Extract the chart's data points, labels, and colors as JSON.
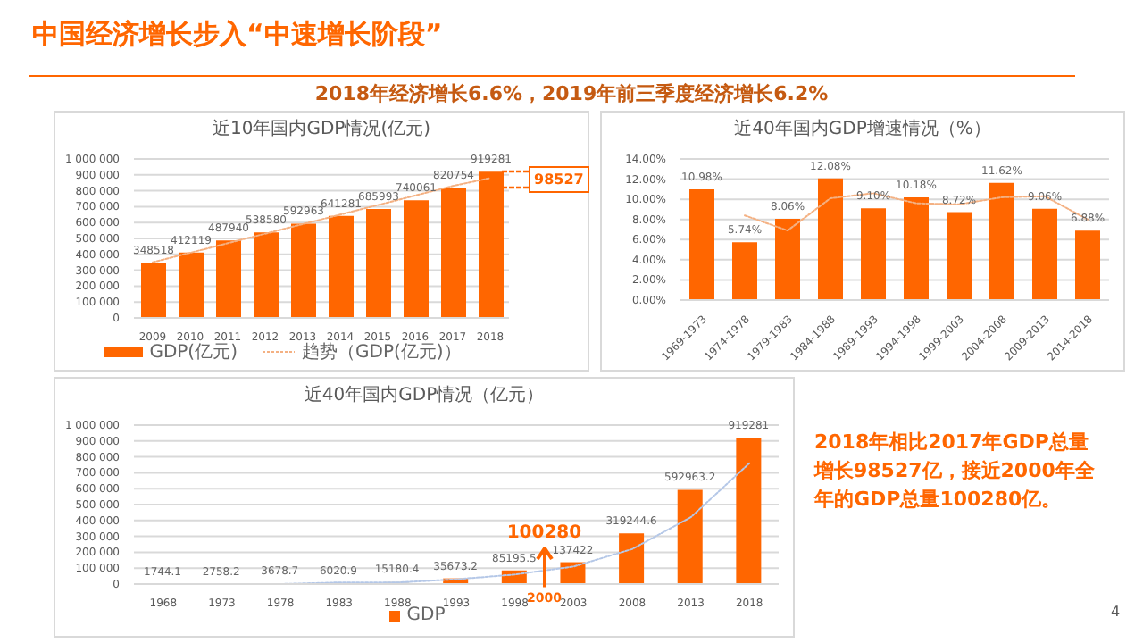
{
  "chart_data": [
    {
      "type": "other",
      "title": "中国经济增长步入“中速增长阶段”",
      "subtitle": "2018年经济增长6.6%，2019年前三季度经济增长6.2%",
      "annotations": [
        "2018年相比2017年GDP总量增长98527亿，接近2000年全年的GDP总量100280亿。",
        "4"
      ]
    },
    {
      "type": "bar",
      "title": "近10年国内GDP情况(亿元)",
      "categories": [
        "2009",
        "2010",
        "2011",
        "2012",
        "2013",
        "2014",
        "2015",
        "2016",
        "2017",
        "2018"
      ],
      "series": [
        {
          "name": "GDP(亿元)",
          "color": "#ff6600",
          "values": [
            348518,
            412119,
            487940,
            538580,
            592963,
            641281,
            685993,
            740061,
            820754,
            919281
          ],
          "value_labels": [
            "348518",
            "412119",
            "487940",
            "538580",
            "592963",
            "641281",
            "685993",
            "740061",
            "820754",
            "919281"
          ]
        },
        {
          "name": "趋势（GDP(亿元)）",
          "type": "line",
          "color": "#f4b183",
          "line_style": "dotted",
          "values": [
            350000,
            410000,
            470000,
            530000,
            590000,
            650000,
            710000,
            770000,
            830000,
            880000
          ]
        }
      ],
      "ylim": [
        0,
        1000000
      ],
      "yticks": [
        {
          "value": 0,
          "label": "0"
        },
        {
          "value": 100000,
          "label": "100 000"
        },
        {
          "value": 200000,
          "label": "200 000"
        },
        {
          "value": 300000,
          "label": "300 000"
        },
        {
          "value": 400000,
          "label": "400 000"
        },
        {
          "value": 500000,
          "label": "500 000"
        },
        {
          "value": 600000,
          "label": "600 000"
        },
        {
          "value": 700000,
          "label": "700 000"
        },
        {
          "value": 800000,
          "label": "800 000"
        },
        {
          "value": 900000,
          "label": "900 000"
        },
        {
          "value": 1000000,
          "label": "1 000 000"
        }
      ],
      "grid": "y",
      "legend": "bottom",
      "marker": "none",
      "annotations": [
        "98527"
      ]
    },
    {
      "type": "bar",
      "title": "近40年国内GDP增速情况（%）",
      "categories": [
        "1969-1973",
        "1974-1978",
        "1979-1983",
        "1984-1988",
        "1989-1993",
        "1994-1998",
        "1999-2003",
        "2004-2008",
        "2009-2013",
        "2014-2018"
      ],
      "series": [
        {
          "color": "#ff6600",
          "values": [
            10.98,
            5.74,
            8.06,
            12.08,
            9.1,
            10.18,
            8.72,
            11.62,
            9.06,
            6.88
          ],
          "value_labels": [
            "10.98%",
            "5.74%",
            "8.06%",
            "12.08%",
            "9.10%",
            "10.18%",
            "8.72%",
            "11.62%",
            "9.06%",
            "6.88%"
          ]
        },
        {
          "type": "line",
          "color": "#f4b183",
          "line_style": "dotted",
          "values": [
            null,
            8.4,
            6.9,
            10.1,
            10.6,
            9.6,
            9.5,
            10.2,
            10.3,
            8.0
          ]
        }
      ],
      "ylim": [
        0,
        14
      ],
      "yticks": [
        {
          "value": 0,
          "label": "0.00%"
        },
        {
          "value": 2,
          "label": "2.00%"
        },
        {
          "value": 4,
          "label": "4.00%"
        },
        {
          "value": 6,
          "label": "6.00%"
        },
        {
          "value": 8,
          "label": "8.00%"
        },
        {
          "value": 10,
          "label": "10.00%"
        },
        {
          "value": 12,
          "label": "12.00%"
        },
        {
          "value": 14,
          "label": "14.00%"
        }
      ],
      "grid": "y",
      "legend": false,
      "marker": "none"
    },
    {
      "type": "bar",
      "title": "近40年国内GDP情况（亿元）",
      "categories": [
        "1968",
        "1973",
        "1978",
        "1983",
        "1988",
        "1993",
        "1998",
        "2003",
        "2008",
        "2013",
        "2018"
      ],
      "series": [
        {
          "name": "GDP",
          "color": "#ff6600",
          "colors": [
            "#d9d9d9",
            "#d9d9d9",
            "#d9d9d9",
            "#d9d9d9",
            "#d9d9d9",
            "#ff6600",
            "#ff6600",
            "#ff6600",
            "#ff6600",
            "#ff6600",
            "#ff6600"
          ],
          "values": [
            1744.1,
            2758.2,
            3678.7,
            6020.9,
            15180.4,
            35673.2,
            85195.5,
            137422,
            319244.6,
            592963.2,
            919281
          ],
          "value_labels": [
            "1744.1",
            "2758.2",
            "3678.7",
            "6020.9",
            "15180.4",
            "35673.2",
            "85195.5",
            "137422",
            "319244.6",
            "592963.2",
            "919281"
          ]
        },
        {
          "type": "line",
          "color": "#b4c7e7",
          "line_style": "dotted",
          "values": [
            null,
            null,
            0,
            10000,
            10000,
            30000,
            60000,
            110000,
            220000,
            420000,
            760000
          ]
        }
      ],
      "ylim": [
        0,
        1000000
      ],
      "yticks": [
        {
          "value": 0,
          "label": "0"
        },
        {
          "value": 100000,
          "label": "100 000"
        },
        {
          "value": 200000,
          "label": "200 000"
        },
        {
          "value": 300000,
          "label": "300 000"
        },
        {
          "value": 400000,
          "label": "400 000"
        },
        {
          "value": 500000,
          "label": "500 000"
        },
        {
          "value": 600000,
          "label": "600 000"
        },
        {
          "value": 700000,
          "label": "700 000"
        },
        {
          "value": 800000,
          "label": "800 000"
        },
        {
          "value": 900000,
          "label": "900 000"
        },
        {
          "value": 1000000,
          "label": "1 000 000"
        }
      ],
      "grid": "y",
      "legend": "bottom",
      "marker": "none",
      "annotations": [
        "100280",
        "2000"
      ]
    }
  ]
}
